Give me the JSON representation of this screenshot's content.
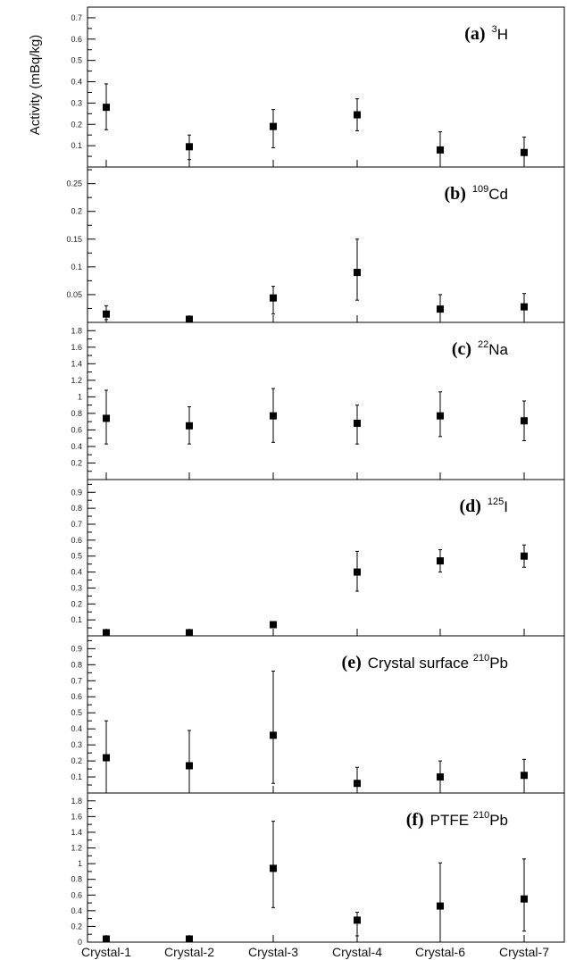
{
  "chart_data": {
    "type": "scatter",
    "ylabel": "Activity (mBq/kg)",
    "categories": [
      "Crystal-1",
      "Crystal-2",
      "Crystal-3",
      "Crystal-4",
      "Crystal-6",
      "Crystal-7"
    ],
    "panels": [
      {
        "tag": "(a)",
        "sup": "3",
        "pre": "",
        "post": "H",
        "ylim": [
          0,
          0.75
        ],
        "ticks": [
          0.1,
          0.2,
          0.3,
          0.4,
          0.5,
          0.6,
          0.7
        ],
        "tick_labels": [
          "0.1",
          "0.2",
          "0.3",
          "0.4",
          "0.5",
          "0.6",
          "0.7"
        ],
        "values": [
          0.28,
          0.095,
          0.19,
          0.245,
          0.08,
          0.068
        ],
        "err_low": [
          0.175,
          0.035,
          0.09,
          0.17,
          0.0,
          0.0
        ],
        "err_high": [
          0.39,
          0.15,
          0.27,
          0.32,
          0.165,
          0.14
        ]
      },
      {
        "tag": "(b)",
        "sup": "109",
        "pre": "",
        "post": "Cd",
        "ylim": [
          0,
          0.28
        ],
        "ticks": [
          0.05,
          0.1,
          0.15,
          0.2,
          0.25
        ],
        "tick_labels": [
          "0.05",
          "0.1",
          "0.15",
          "0.2",
          "0.25"
        ],
        "values": [
          0.015,
          0.003,
          0.044,
          0.09,
          0.024,
          0.028
        ],
        "err_low": [
          0.005,
          0.0,
          0.015,
          0.04,
          0.0,
          0.0
        ],
        "err_high": [
          0.03,
          0.005,
          0.065,
          0.15,
          0.05,
          0.052
        ]
      },
      {
        "tag": "(c)",
        "sup": "22",
        "pre": "",
        "post": "Na",
        "ylim": [
          0,
          1.9
        ],
        "ticks": [
          0.2,
          0.4,
          0.6,
          0.8,
          1.0,
          1.2,
          1.4,
          1.6,
          1.8
        ],
        "tick_labels": [
          "0.2",
          "0.4",
          "0.6",
          "0.8",
          "1",
          "1.2",
          "1.4",
          "1.6",
          "1.8"
        ],
        "values": [
          0.74,
          0.65,
          0.77,
          0.68,
          0.77,
          0.71
        ],
        "err_low": [
          0.43,
          0.43,
          0.45,
          0.43,
          0.52,
          0.47
        ],
        "err_high": [
          1.08,
          0.88,
          1.1,
          0.9,
          1.06,
          0.95
        ]
      },
      {
        "tag": "(d)",
        "sup": "125",
        "pre": "",
        "post": "I",
        "ylim": [
          0,
          0.98
        ],
        "ticks": [
          0.1,
          0.2,
          0.3,
          0.4,
          0.5,
          0.6,
          0.7,
          0.8,
          0.9
        ],
        "tick_labels": [
          "0.1",
          "0.2",
          "0.3",
          "0.4",
          "0.5",
          "0.6",
          "0.7",
          "0.8",
          "0.9"
        ],
        "values": [
          0.0,
          0.0,
          0.07,
          0.4,
          0.47,
          0.5
        ],
        "err_low": [
          0.0,
          0.0,
          0.07,
          0.28,
          0.4,
          0.43
        ],
        "err_high": [
          0.0,
          0.0,
          0.07,
          0.53,
          0.54,
          0.57
        ]
      },
      {
        "tag": "(e)",
        "sup": "210",
        "pre": "Crystal surface ",
        "post": "Pb",
        "ylim": [
          0,
          0.98
        ],
        "ticks": [
          0.1,
          0.2,
          0.3,
          0.4,
          0.5,
          0.6,
          0.7,
          0.8,
          0.9
        ],
        "tick_labels": [
          "0.1",
          "0.2",
          "0.3",
          "0.4",
          "0.5",
          "0.6",
          "0.7",
          "0.8",
          "0.9"
        ],
        "values": [
          0.22,
          0.17,
          0.36,
          0.06,
          0.1,
          0.11
        ],
        "err_low": [
          0.0,
          0.0,
          0.06,
          0.0,
          0.0,
          0.0
        ],
        "err_high": [
          0.45,
          0.39,
          0.76,
          0.16,
          0.2,
          0.21
        ]
      },
      {
        "tag": "(f)",
        "sup": "210",
        "pre": "PTFE ",
        "post": "Pb",
        "ylim": [
          0,
          1.9
        ],
        "ticks": [
          0,
          0.2,
          0.4,
          0.6,
          0.8,
          1.0,
          1.2,
          1.4,
          1.6,
          1.8
        ],
        "tick_labels": [
          "0",
          "0.2",
          "0.4",
          "0.6",
          "0.8",
          "1",
          "1.2",
          "1.4",
          "1.6",
          "1.8"
        ],
        "values": [
          0.0,
          0.0,
          0.94,
          0.28,
          0.46,
          0.55
        ],
        "err_low": [
          0.0,
          0.0,
          0.44,
          0.08,
          0.0,
          0.14
        ],
        "err_high": [
          0.0,
          0.0,
          1.54,
          0.38,
          1.01,
          1.06
        ]
      }
    ]
  }
}
